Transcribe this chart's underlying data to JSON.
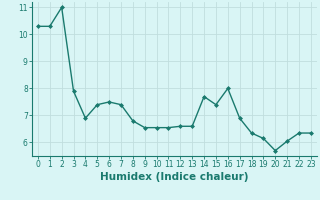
{
  "x": [
    0,
    1,
    2,
    3,
    4,
    5,
    6,
    7,
    8,
    9,
    10,
    11,
    12,
    13,
    14,
    15,
    16,
    17,
    18,
    19,
    20,
    21,
    22,
    23
  ],
  "y": [
    10.3,
    10.3,
    11.0,
    7.9,
    6.9,
    7.4,
    7.5,
    7.4,
    6.8,
    6.55,
    6.55,
    6.55,
    6.6,
    6.6,
    7.7,
    7.4,
    8.0,
    6.9,
    6.35,
    6.15,
    5.7,
    6.05,
    6.35,
    6.35
  ],
  "line_color": "#1a7a6e",
  "marker": "D",
  "marker_size": 2,
  "linewidth": 1.0,
  "xlabel": "Humidex (Indice chaleur)",
  "xlim": [
    -0.5,
    23.5
  ],
  "ylim": [
    5.5,
    11.2
  ],
  "yticks": [
    6,
    7,
    8,
    9,
    10,
    11
  ],
  "xticks": [
    0,
    1,
    2,
    3,
    4,
    5,
    6,
    7,
    8,
    9,
    10,
    11,
    12,
    13,
    14,
    15,
    16,
    17,
    18,
    19,
    20,
    21,
    22,
    23
  ],
  "xtick_labels": [
    "0",
    "1",
    "2",
    "3",
    "4",
    "5",
    "6",
    "7",
    "8",
    "9",
    "10",
    "11",
    "12",
    "13",
    "14",
    "15",
    "16",
    "17",
    "18",
    "19",
    "20",
    "21",
    "22",
    "23"
  ],
  "background_color": "#d9f5f5",
  "grid_color": "#c0dede",
  "tick_fontsize": 5.5,
  "xlabel_fontsize": 7.5
}
